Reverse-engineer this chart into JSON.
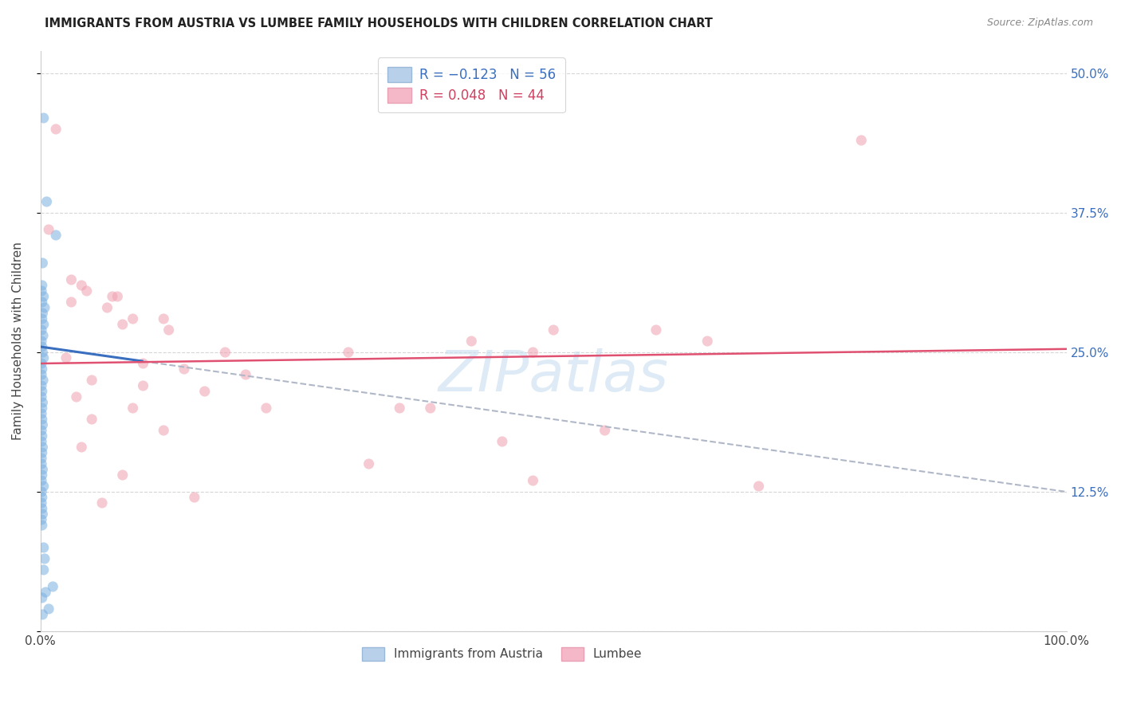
{
  "title": "IMMIGRANTS FROM AUSTRIA VS LUMBEE FAMILY HOUSEHOLDS WITH CHILDREN CORRELATION CHART",
  "source": "Source: ZipAtlas.com",
  "ylabel": "Family Households with Children",
  "blue_scatter": [
    [
      0.3,
      46.0
    ],
    [
      0.6,
      38.5
    ],
    [
      1.5,
      35.5
    ],
    [
      0.2,
      33.0
    ],
    [
      0.15,
      31.0
    ],
    [
      0.1,
      30.5
    ],
    [
      0.3,
      30.0
    ],
    [
      0.15,
      29.5
    ],
    [
      0.4,
      29.0
    ],
    [
      0.2,
      28.5
    ],
    [
      0.15,
      28.0
    ],
    [
      0.3,
      27.5
    ],
    [
      0.1,
      27.0
    ],
    [
      0.25,
      26.5
    ],
    [
      0.1,
      26.0
    ],
    [
      0.15,
      25.5
    ],
    [
      0.2,
      25.0
    ],
    [
      0.3,
      24.5
    ],
    [
      0.1,
      24.0
    ],
    [
      0.15,
      23.5
    ],
    [
      0.1,
      23.0
    ],
    [
      0.25,
      22.5
    ],
    [
      0.1,
      22.0
    ],
    [
      0.15,
      21.5
    ],
    [
      0.1,
      21.0
    ],
    [
      0.2,
      20.5
    ],
    [
      0.15,
      20.0
    ],
    [
      0.1,
      19.5
    ],
    [
      0.15,
      19.0
    ],
    [
      0.2,
      18.5
    ],
    [
      0.1,
      18.0
    ],
    [
      0.15,
      17.5
    ],
    [
      0.1,
      17.0
    ],
    [
      0.2,
      16.5
    ],
    [
      0.15,
      16.0
    ],
    [
      0.1,
      15.5
    ],
    [
      0.1,
      15.0
    ],
    [
      0.2,
      14.5
    ],
    [
      0.15,
      14.0
    ],
    [
      0.1,
      13.5
    ],
    [
      0.3,
      13.0
    ],
    [
      0.1,
      12.5
    ],
    [
      0.15,
      12.0
    ],
    [
      0.1,
      11.5
    ],
    [
      0.15,
      11.0
    ],
    [
      0.2,
      10.5
    ],
    [
      0.1,
      10.0
    ],
    [
      0.15,
      9.5
    ],
    [
      0.3,
      7.5
    ],
    [
      0.4,
      6.5
    ],
    [
      0.3,
      5.5
    ],
    [
      1.2,
      4.0
    ],
    [
      0.5,
      3.5
    ],
    [
      0.15,
      3.0
    ],
    [
      0.8,
      2.0
    ],
    [
      0.2,
      1.5
    ]
  ],
  "pink_scatter": [
    [
      1.5,
      45.0
    ],
    [
      80.0,
      44.0
    ],
    [
      0.8,
      36.0
    ],
    [
      3.0,
      31.5
    ],
    [
      4.0,
      31.0
    ],
    [
      4.5,
      30.5
    ],
    [
      7.0,
      30.0
    ],
    [
      7.5,
      30.0
    ],
    [
      3.0,
      29.5
    ],
    [
      6.5,
      29.0
    ],
    [
      9.0,
      28.0
    ],
    [
      12.0,
      28.0
    ],
    [
      8.0,
      27.5
    ],
    [
      12.5,
      27.0
    ],
    [
      50.0,
      27.0
    ],
    [
      60.0,
      27.0
    ],
    [
      42.0,
      26.0
    ],
    [
      65.0,
      26.0
    ],
    [
      18.0,
      25.0
    ],
    [
      30.0,
      25.0
    ],
    [
      48.0,
      25.0
    ],
    [
      2.5,
      24.5
    ],
    [
      10.0,
      24.0
    ],
    [
      14.0,
      23.5
    ],
    [
      20.0,
      23.0
    ],
    [
      5.0,
      22.5
    ],
    [
      10.0,
      22.0
    ],
    [
      16.0,
      21.5
    ],
    [
      3.5,
      21.0
    ],
    [
      9.0,
      20.0
    ],
    [
      22.0,
      20.0
    ],
    [
      35.0,
      20.0
    ],
    [
      5.0,
      19.0
    ],
    [
      12.0,
      18.0
    ],
    [
      55.0,
      18.0
    ],
    [
      45.0,
      17.0
    ],
    [
      4.0,
      16.5
    ],
    [
      32.0,
      15.0
    ],
    [
      8.0,
      14.0
    ],
    [
      48.0,
      13.5
    ],
    [
      38.0,
      20.0
    ],
    [
      6.0,
      11.5
    ],
    [
      70.0,
      13.0
    ],
    [
      15.0,
      12.0
    ]
  ],
  "blue_line": {
    "x0": 0,
    "x1": 100,
    "y0": 25.5,
    "y1": 12.5
  },
  "blue_line_solid_x1": 10.0,
  "pink_line": {
    "x0": 0,
    "x1": 100,
    "y0": 24.0,
    "y1": 25.3
  },
  "blue_line_color": "#3a6ebf",
  "pink_line_color": "#e05070",
  "blue_scatter_color": "#7ab0e0",
  "pink_scatter_color": "#f0a0b0",
  "background_color": "#ffffff",
  "grid_color": "#cccccc",
  "scatter_alpha": 0.55,
  "scatter_size": 90,
  "xlim": [
    0,
    100
  ],
  "ylim": [
    0,
    52
  ],
  "y_ticks": [
    0,
    12.5,
    25.0,
    37.5,
    50.0
  ],
  "y_tick_labels_right": [
    "",
    "12.5%",
    "25.0%",
    "37.5%",
    "50.0%"
  ],
  "watermark": "ZIPatlas",
  "watermark_color": "#c8dff0",
  "legend1_r1": "R = −0.123",
  "legend1_n1": "N = 56",
  "legend1_r2": "R = 0.048",
  "legend1_n2": "N = 44",
  "legend2_blue": "Immigrants from Austria",
  "legend2_pink": "Lumbee"
}
